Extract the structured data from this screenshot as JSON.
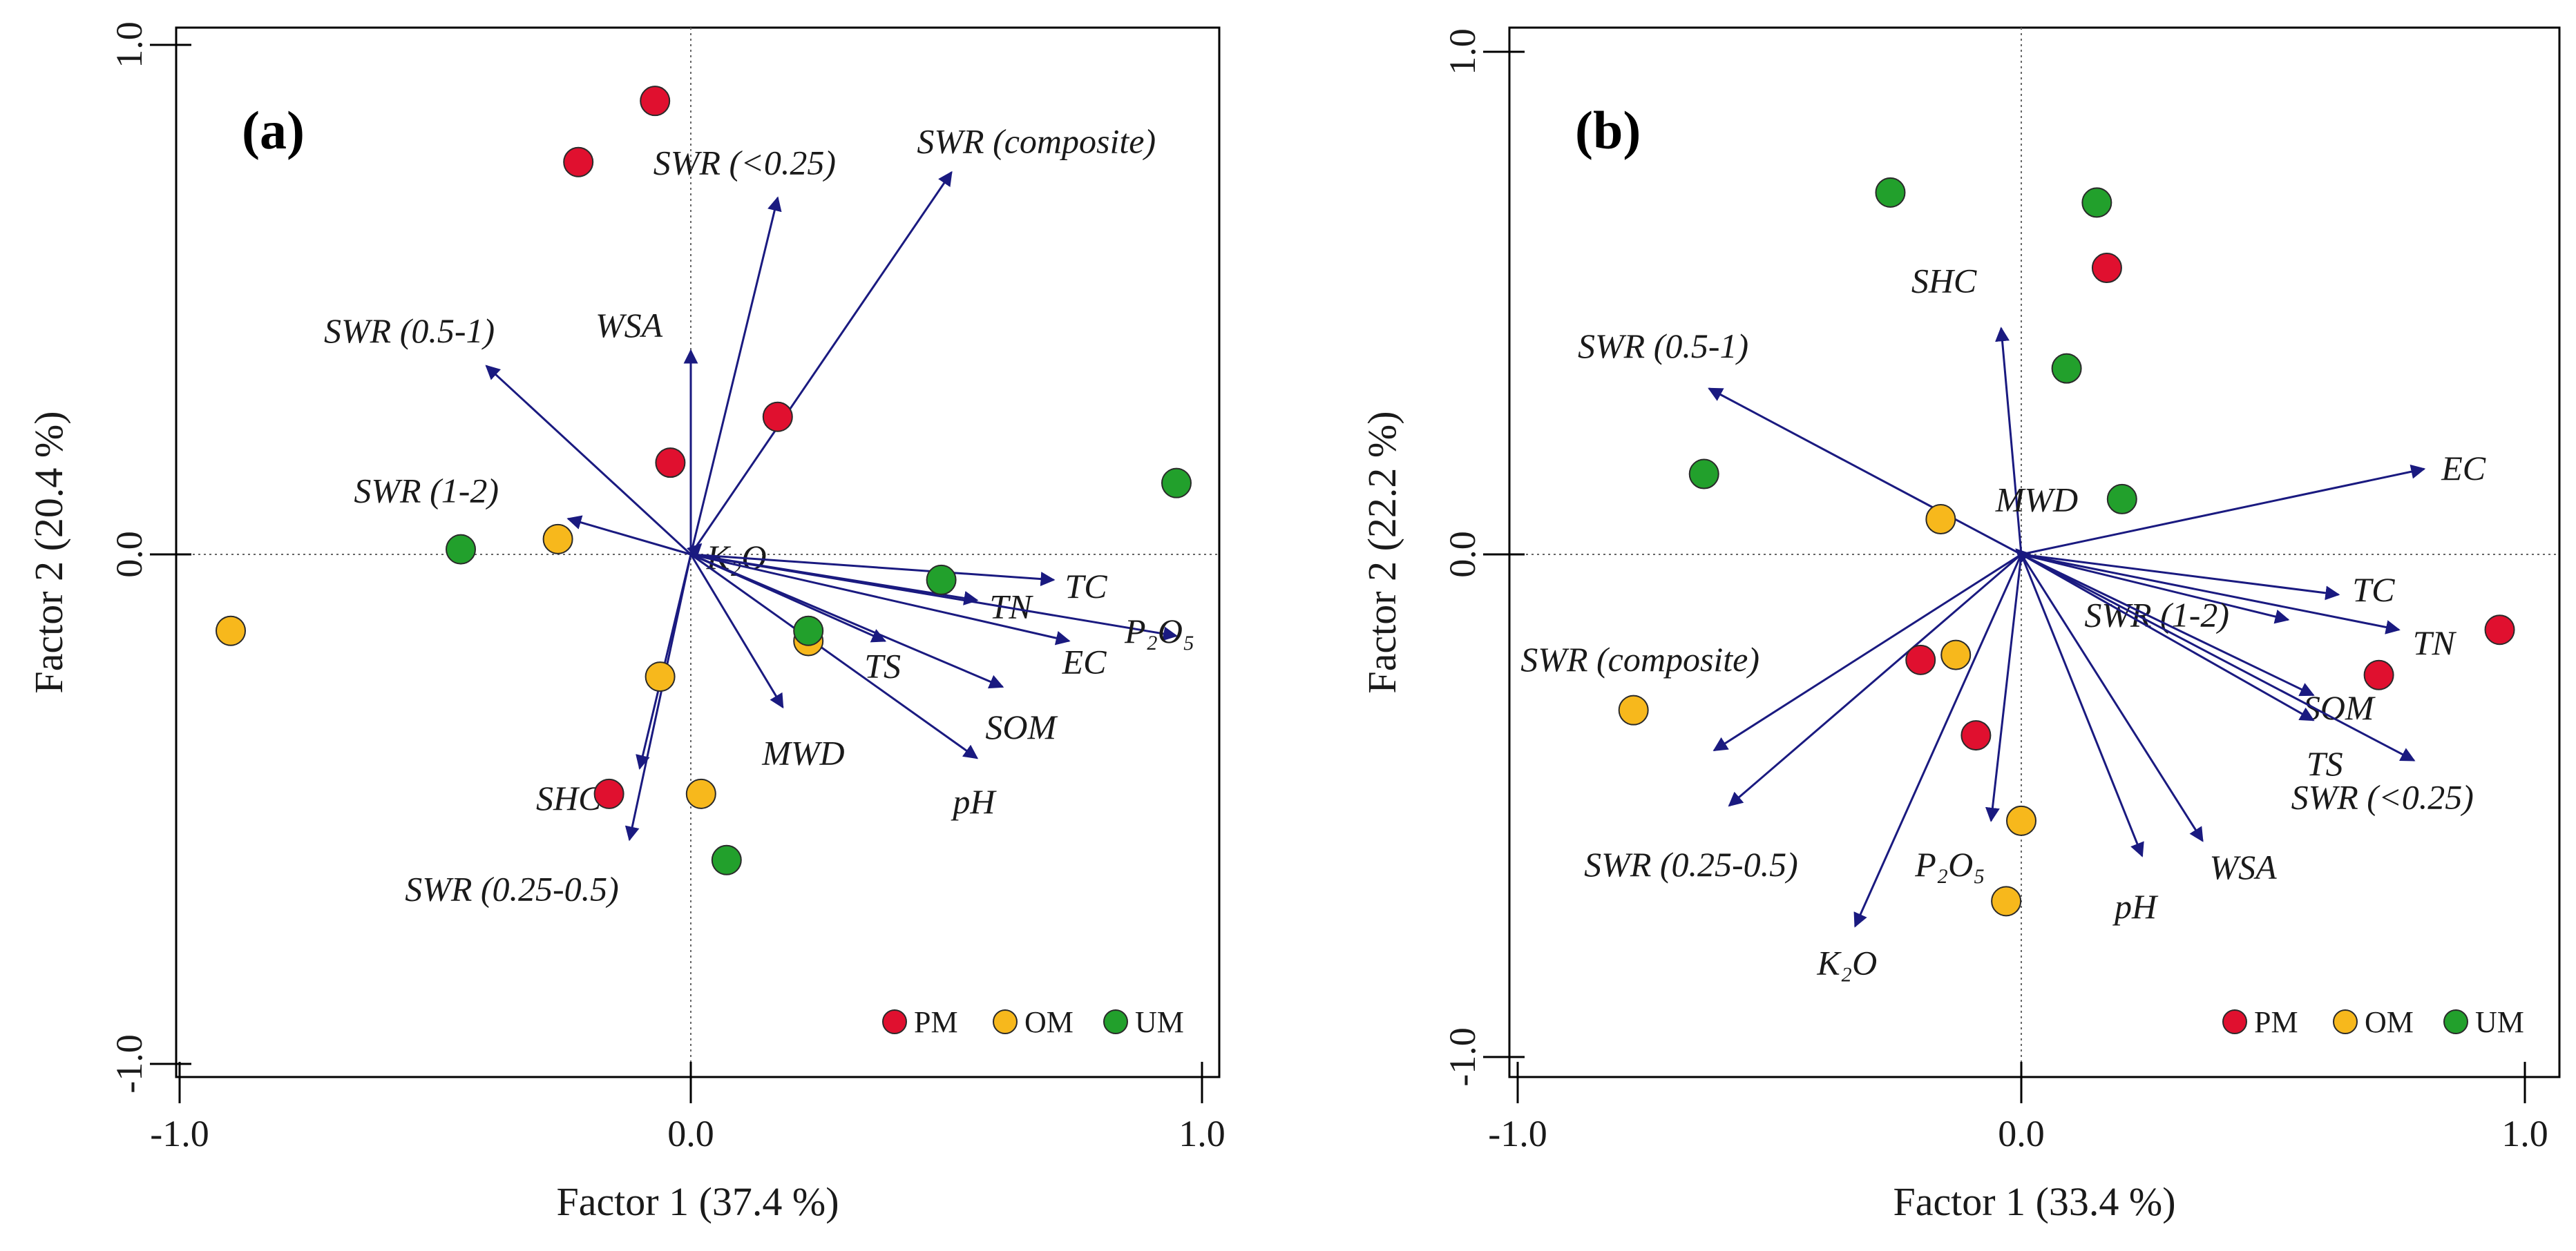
{
  "colors": {
    "arrow": "#1a1a80",
    "PM": "#e0102f",
    "OM": "#f7b81c",
    "UM": "#22a02c",
    "frame": "#000000",
    "refline": "#666666"
  },
  "chart_data": [
    {
      "type": "scatter",
      "subtype": "biplot",
      "panel_label": "(a)",
      "xlabel": "Factor 1 (37.4 %)",
      "ylabel": "Factor 2 (20.4 %)",
      "xlim": [
        -1.0,
        1.0
      ],
      "ylim": [
        -1.0,
        1.0
      ],
      "xticks": [
        -1.0,
        0.0,
        1.0
      ],
      "yticks": [
        -1.0,
        0.0,
        1.0
      ],
      "xtick_labels": [
        "-1.0",
        "0.0",
        "1.0"
      ],
      "ytick_labels": [
        "-1.0",
        "0.0",
        "1.0"
      ],
      "legend": [
        {
          "name": "PM",
          "color_key": "PM"
        },
        {
          "name": "OM",
          "color_key": "OM"
        },
        {
          "name": "UM",
          "color_key": "UM"
        }
      ],
      "legend_position": "bottom-right",
      "vectors": [
        {
          "name": "SWR (composite)",
          "x": 0.51,
          "y": 0.75
        },
        {
          "name": "SWR (<0.25)",
          "x": 0.17,
          "y": 0.7
        },
        {
          "name": "WSA",
          "x": 0.0,
          "y": 0.4
        },
        {
          "name": "SWR (0.5-1)",
          "x": -0.4,
          "y": 0.37
        },
        {
          "name": "SWR (1-2)",
          "x": -0.24,
          "y": 0.07
        },
        {
          "name": "K₂O",
          "x": 0.02,
          "y": 0.02
        },
        {
          "name": "TC",
          "x": 0.71,
          "y": -0.05
        },
        {
          "name": "TN",
          "x": 0.56,
          "y": -0.09
        },
        {
          "name": "P₂O₅",
          "x": 0.95,
          "y": -0.16
        },
        {
          "name": "EC",
          "x": 0.74,
          "y": -0.17
        },
        {
          "name": "TS",
          "x": 0.38,
          "y": -0.17
        },
        {
          "name": "SOM",
          "x": 0.61,
          "y": -0.26
        },
        {
          "name": "MWD",
          "x": 0.18,
          "y": -0.3
        },
        {
          "name": "pH",
          "x": 0.56,
          "y": -0.4
        },
        {
          "name": "SHC",
          "x": -0.1,
          "y": -0.42
        },
        {
          "name": "SWR (0.25-0.5)",
          "x": -0.12,
          "y": -0.56
        }
      ],
      "points": [
        {
          "group": "PM",
          "x": -0.07,
          "y": 0.89
        },
        {
          "group": "PM",
          "x": -0.22,
          "y": 0.77
        },
        {
          "group": "PM",
          "x": 0.17,
          "y": 0.27
        },
        {
          "group": "PM",
          "x": -0.04,
          "y": 0.18
        },
        {
          "group": "PM",
          "x": -0.16,
          "y": -0.47
        },
        {
          "group": "OM",
          "x": -0.26,
          "y": 0.03
        },
        {
          "group": "OM",
          "x": -0.9,
          "y": -0.15
        },
        {
          "group": "OM",
          "x": -0.06,
          "y": -0.24
        },
        {
          "group": "OM",
          "x": 0.23,
          "y": -0.17
        },
        {
          "group": "OM",
          "x": 0.02,
          "y": -0.47
        },
        {
          "group": "UM",
          "x": 0.95,
          "y": 0.14
        },
        {
          "group": "UM",
          "x": -0.45,
          "y": 0.01
        },
        {
          "group": "UM",
          "x": 0.49,
          "y": -0.05
        },
        {
          "group": "UM",
          "x": 0.23,
          "y": -0.15
        },
        {
          "group": "UM",
          "x": 0.07,
          "y": -0.6
        }
      ]
    },
    {
      "type": "scatter",
      "subtype": "biplot",
      "panel_label": "(b)",
      "xlabel": "Factor 1 (33.4 %)",
      "ylabel": "Factor 2 (22.2 %)",
      "xlim": [
        -1.0,
        1.0
      ],
      "ylim": [
        -1.0,
        1.0
      ],
      "xticks": [
        -1.0,
        0.0,
        1.0
      ],
      "yticks": [
        -1.0,
        0.0,
        1.0
      ],
      "xtick_labels": [
        "-1.0",
        "0.0",
        "1.0"
      ],
      "ytick_labels": [
        "-1.0",
        "0.0",
        "1.0"
      ],
      "legend": [
        {
          "name": "PM",
          "color_key": "PM"
        },
        {
          "name": "OM",
          "color_key": "OM"
        },
        {
          "name": "UM",
          "color_key": "UM"
        }
      ],
      "legend_position": "bottom-right",
      "vectors": [
        {
          "name": "EC",
          "x": 0.8,
          "y": 0.17
        },
        {
          "name": "SHC",
          "x": -0.04,
          "y": 0.45
        },
        {
          "name": "SWR (0.5-1)",
          "x": -0.62,
          "y": 0.33
        },
        {
          "name": "MWD",
          "x": -0.01,
          "y": 0.01
        },
        {
          "name": "TC",
          "x": 0.63,
          "y": -0.08
        },
        {
          "name": "TN",
          "x": 0.75,
          "y": -0.15
        },
        {
          "name": "SWR (1-2)",
          "x": 0.53,
          "y": -0.13
        },
        {
          "name": "SOM",
          "x": 0.58,
          "y": -0.28
        },
        {
          "name": "TS",
          "x": 0.58,
          "y": -0.33
        },
        {
          "name": "SWR (<0.25)",
          "x": 0.78,
          "y": -0.41
        },
        {
          "name": "SWR (composite)",
          "x": -0.61,
          "y": -0.39
        },
        {
          "name": "SWR (0.25-0.5)",
          "x": -0.58,
          "y": -0.5
        },
        {
          "name": "P₂O₅",
          "x": -0.06,
          "y": -0.53
        },
        {
          "name": "pH",
          "x": 0.24,
          "y": -0.6
        },
        {
          "name": "WSA",
          "x": 0.36,
          "y": -0.57
        },
        {
          "name": "K₂O",
          "x": -0.33,
          "y": -0.74
        }
      ],
      "points": [
        {
          "group": "PM",
          "x": 0.17,
          "y": 0.57
        },
        {
          "group": "PM",
          "x": 0.95,
          "y": -0.15
        },
        {
          "group": "PM",
          "x": 0.71,
          "y": -0.24
        },
        {
          "group": "PM",
          "x": -0.2,
          "y": -0.21
        },
        {
          "group": "PM",
          "x": -0.09,
          "y": -0.36
        },
        {
          "group": "OM",
          "x": -0.16,
          "y": 0.07
        },
        {
          "group": "OM",
          "x": -0.77,
          "y": -0.31
        },
        {
          "group": "OM",
          "x": -0.13,
          "y": -0.2
        },
        {
          "group": "OM",
          "x": 0.0,
          "y": -0.53
        },
        {
          "group": "OM",
          "x": -0.03,
          "y": -0.69
        },
        {
          "group": "UM",
          "x": -0.26,
          "y": 0.72
        },
        {
          "group": "UM",
          "x": 0.15,
          "y": 0.7
        },
        {
          "group": "UM",
          "x": 0.09,
          "y": 0.37
        },
        {
          "group": "UM",
          "x": -0.63,
          "y": 0.16
        },
        {
          "group": "UM",
          "x": 0.2,
          "y": 0.11
        }
      ]
    }
  ]
}
